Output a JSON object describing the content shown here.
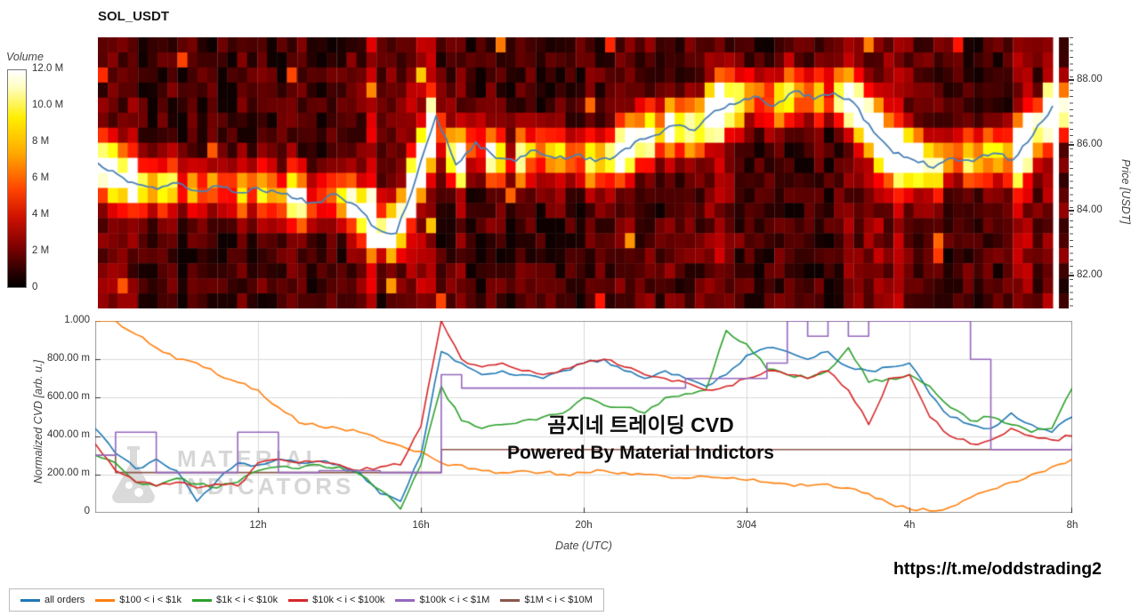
{
  "overlay": {
    "line1": "곰지네 트레이딩 CVD",
    "line2": "Powered By Material Indictors"
  },
  "watermark": {
    "line1": "MATERIAL",
    "line2": "INDICATORS"
  },
  "footer": {
    "link": "https://t.me/oddstrading2"
  },
  "chart_data": [
    {
      "type": "heatmap",
      "title": "SOL_USDT",
      "ylabel": "Price [USDT]",
      "y_range": [
        81.0,
        89.3
      ],
      "y_ticks": [
        {
          "label": "88.00",
          "price": 88
        },
        {
          "label": "86.00",
          "price": 86
        },
        {
          "label": "84.00",
          "price": 84
        },
        {
          "label": "82.00",
          "price": 82
        }
      ],
      "colorbar": {
        "label": "Volume",
        "colormap": "hot",
        "ticks": [
          "12.0 M",
          "10.0 M",
          "8 M",
          "6 M",
          "4 M",
          "2 M",
          "0"
        ],
        "tick_values": [
          12000000,
          10000000,
          8000000,
          6000000,
          4000000,
          2000000,
          0
        ]
      },
      "x_hours_total": 24,
      "price_line": {
        "color": "#4a80b5",
        "x_step_hours": 0.5,
        "values": [
          85.45,
          85.1,
          84.8,
          84.65,
          84.85,
          84.6,
          84.75,
          84.55,
          84.7,
          84.55,
          84.35,
          84.25,
          84.5,
          84.15,
          83.45,
          83.3,
          85.0,
          86.9,
          85.4,
          86.1,
          85.6,
          85.5,
          85.85,
          85.6,
          85.7,
          85.5,
          85.65,
          86.1,
          86.3,
          86.6,
          86.45,
          87.05,
          87.25,
          87.5,
          87.2,
          87.65,
          87.4,
          87.6,
          87.3,
          86.4,
          85.75,
          85.55,
          85.3,
          85.6,
          85.5,
          85.75,
          85.55,
          86.3,
          87.2
        ]
      },
      "render": {
        "cols": 96,
        "rows": 18,
        "sigma": 0.55,
        "seed": 20240304
      }
    },
    {
      "type": "line",
      "ylabel": "Normalized CVD [arb. u.]",
      "xlabel": "Date (UTC)",
      "ylim": [
        0,
        1
      ],
      "grid": true,
      "legend_position": "bottom-left-outside",
      "y_ticks": [
        "1.000",
        "800.00 m",
        "600.00 m",
        "400.00 m",
        "200.00 m",
        "0"
      ],
      "x_ticks": [
        {
          "label": "12h",
          "hour": 4
        },
        {
          "label": "16h",
          "hour": 8
        },
        {
          "label": "20h",
          "hour": 12
        },
        {
          "label": "3/04",
          "hour": 16
        },
        {
          "label": "4h",
          "hour": 20
        },
        {
          "label": "8h",
          "hour": 24
        }
      ],
      "x_step_hours": 0.5,
      "series": [
        {
          "name": "all orders",
          "color": "#1f77b4",
          "style": "line",
          "values": [
            0.44,
            0.31,
            0.23,
            0.28,
            0.22,
            0.06,
            0.17,
            0.26,
            0.25,
            0.28,
            0.26,
            0.27,
            0.25,
            0.21,
            0.1,
            0.06,
            0.3,
            0.84,
            0.78,
            0.72,
            0.74,
            0.72,
            0.7,
            0.74,
            0.78,
            0.8,
            0.74,
            0.7,
            0.74,
            0.7,
            0.66,
            0.72,
            0.82,
            0.86,
            0.84,
            0.8,
            0.84,
            0.76,
            0.74,
            0.76,
            0.78,
            0.62,
            0.5,
            0.46,
            0.44,
            0.52,
            0.46,
            0.42,
            0.5
          ]
        },
        {
          "name": "$100 < i < $1k",
          "color": "#ff7f0e",
          "style": "line",
          "values": [
            1.0,
            1.0,
            0.93,
            0.86,
            0.8,
            0.78,
            0.72,
            0.68,
            0.64,
            0.55,
            0.47,
            0.45,
            0.44,
            0.42,
            0.38,
            0.35,
            0.32,
            0.26,
            0.25,
            0.22,
            0.21,
            0.22,
            0.21,
            0.2,
            0.21,
            0.22,
            0.21,
            0.2,
            0.19,
            0.18,
            0.19,
            0.18,
            0.17,
            0.16,
            0.15,
            0.14,
            0.15,
            0.13,
            0.1,
            0.05,
            0.02,
            0.01,
            0.03,
            0.08,
            0.12,
            0.16,
            0.2,
            0.24,
            0.28
          ]
        },
        {
          "name": "$1k < i < $10k",
          "color": "#2ca02c",
          "style": "line",
          "values": [
            0.3,
            0.26,
            0.16,
            0.14,
            0.18,
            0.15,
            0.13,
            0.16,
            0.22,
            0.24,
            0.23,
            0.25,
            0.24,
            0.2,
            0.12,
            0.02,
            0.25,
            0.66,
            0.48,
            0.44,
            0.46,
            0.48,
            0.5,
            0.52,
            0.6,
            0.56,
            0.55,
            0.52,
            0.6,
            0.62,
            0.64,
            0.95,
            0.88,
            0.75,
            0.72,
            0.7,
            0.74,
            0.86,
            0.68,
            0.7,
            0.72,
            0.66,
            0.55,
            0.48,
            0.5,
            0.46,
            0.42,
            0.44,
            0.65
          ]
        },
        {
          "name": "$10k < i < $100k",
          "color": "#d62728",
          "style": "line",
          "values": [
            0.36,
            0.22,
            0.16,
            0.14,
            0.16,
            0.13,
            0.15,
            0.14,
            0.26,
            0.28,
            0.26,
            0.27,
            0.25,
            0.22,
            0.24,
            0.25,
            0.45,
            1.0,
            0.8,
            0.76,
            0.78,
            0.74,
            0.72,
            0.75,
            0.78,
            0.8,
            0.76,
            0.72,
            0.7,
            0.68,
            0.64,
            0.66,
            0.7,
            0.74,
            0.72,
            0.7,
            0.74,
            0.64,
            0.46,
            0.7,
            0.72,
            0.5,
            0.4,
            0.36,
            0.38,
            0.44,
            0.4,
            0.38,
            0.4
          ]
        },
        {
          "name": "$100k < i < $1M",
          "color": "#9467bd",
          "style": "step",
          "values": [
            0.3,
            0.42,
            0.42,
            0.21,
            0.21,
            0.21,
            0.21,
            0.42,
            0.42,
            0.21,
            0.21,
            0.22,
            0.22,
            0.22,
            0.21,
            0.21,
            0.21,
            0.72,
            0.65,
            0.65,
            0.65,
            0.65,
            0.65,
            0.65,
            0.65,
            0.65,
            0.65,
            0.65,
            0.65,
            0.7,
            0.7,
            0.7,
            0.7,
            0.78,
            1.0,
            0.92,
            1.0,
            0.92,
            1.0,
            1.0,
            1.0,
            1.0,
            1.0,
            0.8,
            0.33,
            0.33,
            0.33,
            0.33,
            0.36
          ]
        },
        {
          "name": "$1M < i < $10M",
          "color": "#8c564b",
          "style": "step",
          "values": [
            0.3,
            0.21,
            0.21,
            0.21,
            0.21,
            0.21,
            0.21,
            0.21,
            0.21,
            0.21,
            0.21,
            0.21,
            0.21,
            0.21,
            0.21,
            0.21,
            0.21,
            0.33,
            0.33,
            0.33,
            0.33,
            0.33,
            0.33,
            0.33,
            0.33,
            0.33,
            0.33,
            0.33,
            0.33,
            0.33,
            0.33,
            0.33,
            0.33,
            0.33,
            0.33,
            0.33,
            0.33,
            0.33,
            0.33,
            0.33,
            0.33,
            0.33,
            0.33,
            0.33,
            0.33,
            0.33,
            0.33,
            0.33,
            0.35
          ]
        }
      ]
    }
  ]
}
